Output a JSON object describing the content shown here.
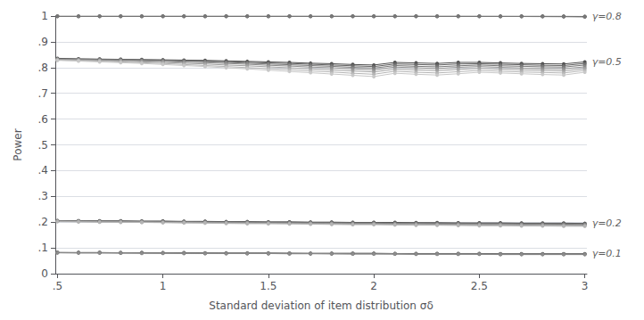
{
  "chart_data": {
    "type": "line",
    "xlabel": "Standard deviation of item distribution σδ",
    "ylabel": "Power",
    "x": [
      0.5,
      0.6,
      0.7,
      0.8,
      0.9,
      1.0,
      1.1,
      1.2,
      1.3,
      1.4,
      1.5,
      1.6,
      1.7,
      1.8,
      1.9,
      2.0,
      2.1,
      2.2,
      2.3,
      2.4,
      2.5,
      2.6,
      2.7,
      2.8,
      2.9,
      3.0
    ],
    "xlim": [
      0.49,
      3.01
    ],
    "ylim": [
      0.0,
      1.0
    ],
    "xticks": [
      {
        "value": 0.5,
        "label": ".5"
      },
      1,
      1.5,
      2,
      2.5,
      3
    ],
    "yticks": [
      0,
      {
        "value": 0.1,
        "label": ".1"
      },
      {
        "value": 0.2,
        "label": ".2"
      },
      {
        "value": 0.3,
        "label": ".3"
      },
      {
        "value": 0.4,
        "label": ".4"
      },
      {
        "value": 0.5,
        "label": ".5"
      },
      {
        "value": 0.6,
        "label": ".6"
      },
      {
        "value": 0.7,
        "label": ".7"
      },
      {
        "value": 0.8,
        "label": ".8"
      },
      {
        "value": 0.9,
        "label": ".9"
      },
      1
    ],
    "grid": true,
    "marker": "circle",
    "series": [
      {
        "color": "#505050",
        "values": [
          0.999,
          0.999,
          0.999,
          0.999,
          0.999,
          0.999,
          0.999,
          0.999,
          0.999,
          0.999,
          0.999,
          0.999,
          0.999,
          0.999,
          0.999,
          0.999,
          0.999,
          0.999,
          0.999,
          0.999,
          0.999,
          0.999,
          0.999,
          0.999,
          0.999,
          0.9985
        ]
      },
      {
        "color": "#646464",
        "values": [
          0.999,
          0.999,
          0.999,
          0.999,
          0.999,
          0.999,
          0.999,
          0.999,
          0.999,
          0.999,
          0.999,
          0.999,
          0.999,
          0.999,
          0.999,
          0.999,
          0.999,
          0.999,
          0.999,
          0.999,
          0.999,
          0.999,
          0.999,
          0.9988,
          0.9985,
          0.9978
        ]
      },
      {
        "color": "#787878",
        "values": [
          0.999,
          0.999,
          0.999,
          0.999,
          0.999,
          0.999,
          0.999,
          0.999,
          0.999,
          0.999,
          0.999,
          0.999,
          0.999,
          0.999,
          0.999,
          0.999,
          0.999,
          0.999,
          0.999,
          0.999,
          0.9988,
          0.9985,
          0.9982,
          0.9978,
          0.9974,
          0.9968
        ]
      },
      {
        "color": "#505050",
        "values": [
          0.836,
          0.834,
          0.833,
          0.832,
          0.831,
          0.83,
          0.829,
          0.828,
          0.826,
          0.824,
          0.822,
          0.82,
          0.817,
          0.815,
          0.812,
          0.81,
          0.82,
          0.818,
          0.816,
          0.82,
          0.82,
          0.818,
          0.816,
          0.815,
          0.814,
          0.822
        ]
      },
      {
        "color": "#646464",
        "values": [
          0.834,
          0.833,
          0.832,
          0.831,
          0.83,
          0.829,
          0.827,
          0.825,
          0.823,
          0.821,
          0.818,
          0.816,
          0.813,
          0.81,
          0.807,
          0.804,
          0.814,
          0.812,
          0.81,
          0.814,
          0.815,
          0.813,
          0.811,
          0.809,
          0.808,
          0.816
        ]
      },
      {
        "color": "#787878",
        "values": [
          0.833,
          0.832,
          0.831,
          0.83,
          0.828,
          0.827,
          0.825,
          0.823,
          0.82,
          0.817,
          0.814,
          0.811,
          0.808,
          0.805,
          0.801,
          0.798,
          0.808,
          0.805,
          0.803,
          0.807,
          0.81,
          0.807,
          0.805,
          0.803,
          0.802,
          0.81
        ]
      },
      {
        "color": "#8c8c8c",
        "values": [
          0.832,
          0.831,
          0.829,
          0.828,
          0.826,
          0.824,
          0.821,
          0.819,
          0.816,
          0.813,
          0.809,
          0.806,
          0.802,
          0.799,
          0.795,
          0.791,
          0.802,
          0.799,
          0.796,
          0.801,
          0.804,
          0.801,
          0.798,
          0.796,
          0.795,
          0.803
        ]
      },
      {
        "color": "#a0a0a0",
        "values": [
          0.831,
          0.829,
          0.827,
          0.825,
          0.822,
          0.82,
          0.817,
          0.814,
          0.81,
          0.807,
          0.803,
          0.799,
          0.795,
          0.791,
          0.787,
          0.783,
          0.794,
          0.791,
          0.788,
          0.793,
          0.797,
          0.794,
          0.791,
          0.789,
          0.787,
          0.796
        ]
      },
      {
        "color": "#b4b4b4",
        "values": [
          0.829,
          0.827,
          0.825,
          0.822,
          0.819,
          0.816,
          0.812,
          0.808,
          0.804,
          0.8,
          0.796,
          0.792,
          0.787,
          0.783,
          0.778,
          0.774,
          0.786,
          0.782,
          0.779,
          0.784,
          0.789,
          0.786,
          0.783,
          0.781,
          0.779,
          0.789
        ]
      },
      {
        "color": "#c8c8c8",
        "values": [
          0.828,
          0.825,
          0.822,
          0.819,
          0.816,
          0.812,
          0.808,
          0.804,
          0.799,
          0.795,
          0.79,
          0.785,
          0.78,
          0.775,
          0.77,
          0.765,
          0.778,
          0.774,
          0.771,
          0.776,
          0.782,
          0.779,
          0.776,
          0.773,
          0.771,
          0.782
        ]
      },
      {
        "color": "#505050",
        "values": [
          0.206,
          0.205,
          0.205,
          0.205,
          0.204,
          0.204,
          0.203,
          0.203,
          0.202,
          0.202,
          0.201,
          0.201,
          0.2,
          0.2,
          0.199,
          0.199,
          0.199,
          0.198,
          0.198,
          0.197,
          0.197,
          0.197,
          0.196,
          0.196,
          0.196,
          0.195
        ]
      },
      {
        "color": "#646464",
        "values": [
          0.205,
          0.205,
          0.204,
          0.204,
          0.203,
          0.203,
          0.202,
          0.202,
          0.201,
          0.201,
          0.2,
          0.2,
          0.199,
          0.199,
          0.198,
          0.198,
          0.197,
          0.197,
          0.196,
          0.196,
          0.195,
          0.195,
          0.195,
          0.194,
          0.194,
          0.194
        ]
      },
      {
        "color": "#787878",
        "values": [
          0.204,
          0.204,
          0.203,
          0.203,
          0.202,
          0.202,
          0.201,
          0.2,
          0.2,
          0.199,
          0.199,
          0.198,
          0.197,
          0.197,
          0.196,
          0.196,
          0.195,
          0.195,
          0.194,
          0.194,
          0.193,
          0.193,
          0.192,
          0.192,
          0.192,
          0.191
        ]
      },
      {
        "color": "#8c8c8c",
        "values": [
          0.204,
          0.203,
          0.202,
          0.202,
          0.201,
          0.2,
          0.2,
          0.199,
          0.198,
          0.198,
          0.197,
          0.196,
          0.196,
          0.195,
          0.194,
          0.194,
          0.193,
          0.193,
          0.192,
          0.192,
          0.191,
          0.191,
          0.19,
          0.19,
          0.189,
          0.189
        ]
      },
      {
        "color": "#a0a0a0",
        "values": [
          0.203,
          0.202,
          0.201,
          0.201,
          0.2,
          0.199,
          0.198,
          0.198,
          0.197,
          0.196,
          0.195,
          0.195,
          0.194,
          0.193,
          0.192,
          0.192,
          0.191,
          0.19,
          0.19,
          0.189,
          0.189,
          0.188,
          0.188,
          0.187,
          0.187,
          0.186
        ]
      },
      {
        "color": "#b4b4b4",
        "values": [
          0.202,
          0.201,
          0.2,
          0.199,
          0.199,
          0.198,
          0.197,
          0.196,
          0.195,
          0.194,
          0.194,
          0.193,
          0.192,
          0.191,
          0.19,
          0.19,
          0.189,
          0.188,
          0.188,
          0.187,
          0.186,
          0.186,
          0.185,
          0.185,
          0.184,
          0.184
        ]
      },
      {
        "color": "#505050",
        "values": [
          0.082,
          0.082,
          0.082,
          0.081,
          0.081,
          0.081,
          0.081,
          0.08,
          0.08,
          0.08,
          0.08,
          0.079,
          0.079,
          0.079,
          0.079,
          0.079,
          0.078,
          0.078,
          0.078,
          0.078,
          0.078,
          0.077,
          0.077,
          0.077,
          0.077,
          0.077
        ]
      },
      {
        "color": "#646464",
        "values": [
          0.082,
          0.081,
          0.081,
          0.081,
          0.081,
          0.08,
          0.08,
          0.08,
          0.079,
          0.079,
          0.079,
          0.079,
          0.078,
          0.078,
          0.078,
          0.078,
          0.077,
          0.077,
          0.077,
          0.077,
          0.077,
          0.076,
          0.076,
          0.076,
          0.076,
          0.076
        ]
      },
      {
        "color": "#787878",
        "values": [
          0.081,
          0.081,
          0.081,
          0.08,
          0.08,
          0.08,
          0.079,
          0.079,
          0.079,
          0.079,
          0.078,
          0.078,
          0.078,
          0.077,
          0.077,
          0.077,
          0.077,
          0.076,
          0.076,
          0.076,
          0.076,
          0.075,
          0.075,
          0.075,
          0.075,
          0.075
        ]
      },
      {
        "color": "#8c8c8c",
        "values": [
          0.081,
          0.08,
          0.08,
          0.08,
          0.079,
          0.079,
          0.079,
          0.078,
          0.078,
          0.078,
          0.078,
          0.077,
          0.077,
          0.077,
          0.076,
          0.076,
          0.076,
          0.075,
          0.075,
          0.075,
          0.075,
          0.074,
          0.074,
          0.074,
          0.074,
          0.074
        ]
      }
    ],
    "annotations": [
      {
        "text": "γ=0.8",
        "x": 3.0,
        "y": 0.9985
      },
      {
        "text": "γ=0.5",
        "x": 3.0,
        "y": 0.822
      },
      {
        "text": "γ=0.2",
        "x": 3.0,
        "y": 0.195
      },
      {
        "text": "γ=0.1",
        "x": 3.0,
        "y": 0.077
      }
    ]
  }
}
